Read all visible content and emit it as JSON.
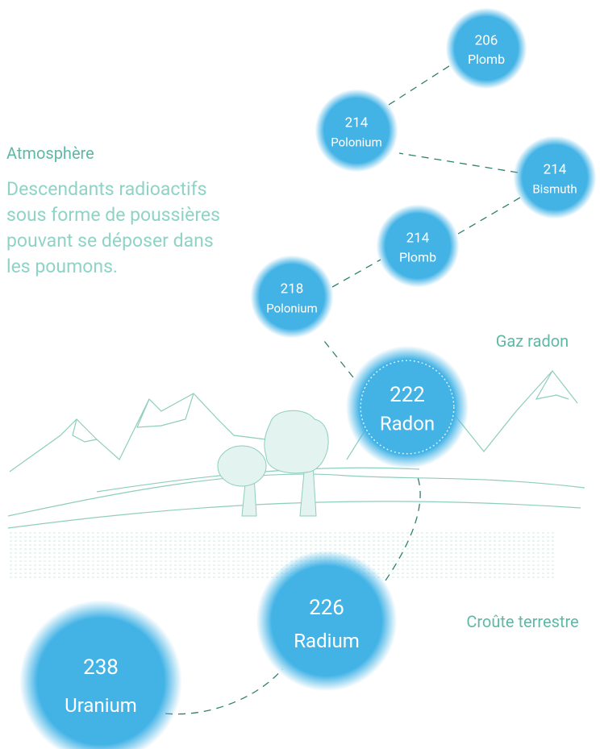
{
  "labels": {
    "atmosphere": "Atmosphère",
    "description": [
      "Descendants radioactifs",
      "sous forme de poussières",
      "pouvant se déposer dans",
      "les poumons."
    ],
    "gas": "Gaz radon",
    "crust": "Croûte terrestre"
  },
  "nodes": [
    {
      "number": "206",
      "name": "Plomb"
    },
    {
      "number": "214",
      "name": "Polonium"
    },
    {
      "number": "214",
      "name": "Bismuth"
    },
    {
      "number": "214",
      "name": "Plomb"
    },
    {
      "number": "218",
      "name": "Polonium"
    },
    {
      "number": "222",
      "name": "Radon"
    },
    {
      "number": "226",
      "name": "Radium"
    },
    {
      "number": "238",
      "name": "Uranium"
    }
  ]
}
